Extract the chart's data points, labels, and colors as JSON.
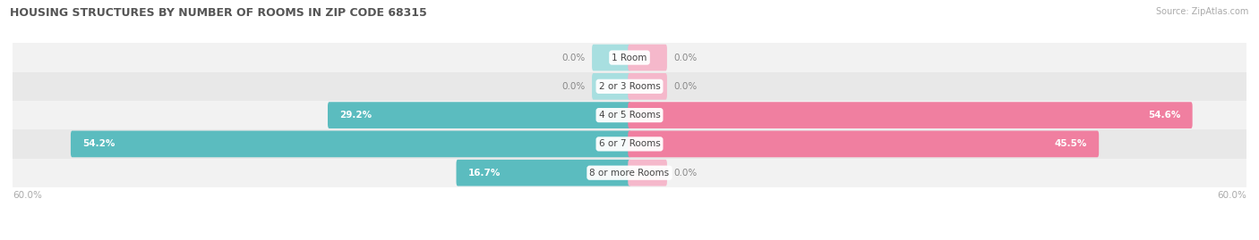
{
  "title": "HOUSING STRUCTURES BY NUMBER OF ROOMS IN ZIP CODE 68315",
  "source": "Source: ZipAtlas.com",
  "categories": [
    "1 Room",
    "2 or 3 Rooms",
    "4 or 5 Rooms",
    "6 or 7 Rooms",
    "8 or more Rooms"
  ],
  "owner_values": [
    0.0,
    0.0,
    29.2,
    54.2,
    16.7
  ],
  "renter_values": [
    0.0,
    0.0,
    54.6,
    45.5,
    0.0
  ],
  "max_val": 60.0,
  "owner_color": "#5bbcbf",
  "renter_color": "#f07fa0",
  "renter_color_light": "#f5b8cb",
  "owner_color_light": "#a8dfe0",
  "row_bg_colors": [
    "#f2f2f2",
    "#e8e8e8",
    "#f2f2f2",
    "#e8e8e8",
    "#f2f2f2"
  ],
  "label_color_small": "#888888",
  "axis_label_color": "#aaaaaa",
  "title_color": "#555555",
  "source_color": "#aaaaaa",
  "small_bar_size": 3.5
}
